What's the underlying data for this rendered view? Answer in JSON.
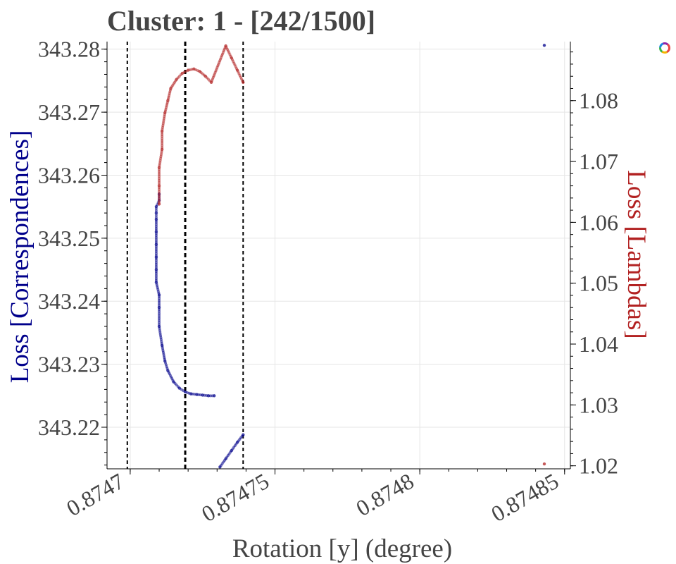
{
  "chart_title": "Cluster: 1 - [242/1500]",
  "toolbar": {
    "logo_icon": "bokeh-logo-icon"
  },
  "colors": {
    "left_series": "#00008b",
    "right_series": "#b22222",
    "left_axis_label": "#00008b",
    "right_axis_label": "#b22222",
    "tick_text": "#444444",
    "grid": "#e5e5e5",
    "marker_line": "#000000"
  },
  "chart_data": {
    "type": "scatter",
    "title": "Cluster: 1 - [242/1500]",
    "xlabel": "Rotation [y] (degree)",
    "ylabel": "Loss [Correspondences]",
    "ylabel_right": "Loss [Lambdas]",
    "xlim": [
      0.874692,
      0.874852
    ],
    "ylim": [
      343.2134,
      343.2812
    ],
    "ylim_right": [
      1.0195,
      1.0897
    ],
    "x_ticks": [
      0.8747,
      0.87475,
      0.8748,
      0.87485
    ],
    "x_tick_labels": [
      "0.8747",
      "0.87475",
      "0.8748",
      "0.87485"
    ],
    "y_ticks": [
      343.22,
      343.23,
      343.24,
      343.25,
      343.26,
      343.27,
      343.28
    ],
    "y_tick_labels": [
      "343.22",
      "343.23",
      "343.24",
      "343.25",
      "343.26",
      "343.27",
      "343.28"
    ],
    "y_right_ticks": [
      1.02,
      1.03,
      1.04,
      1.05,
      1.06,
      1.07,
      1.08
    ],
    "y_right_tick_labels": [
      "1.02",
      "1.03",
      "1.04",
      "1.05",
      "1.06",
      "1.07",
      "1.08"
    ],
    "grid": true,
    "vertical_lines": [
      {
        "x": 0.874699,
        "style": "dashed"
      },
      {
        "x": 0.874719,
        "style": "dashed-bold"
      },
      {
        "x": 0.874739,
        "style": "dashed"
      }
    ],
    "series": [
      {
        "axis": "left",
        "color": "#00008b",
        "x": [
          0.874729,
          0.874727,
          0.874725,
          0.874723,
          0.874721,
          0.874719,
          0.874717,
          0.874715,
          0.874713,
          0.874712,
          0.874711,
          0.87471,
          0.87471,
          0.87471,
          0.874709,
          0.874709,
          0.874709,
          0.874709,
          0.874709,
          0.874709,
          0.874709,
          0.874709,
          0.87471,
          0.87471,
          0.874731,
          0.874733,
          0.874735,
          0.874737,
          0.874739,
          0.874843
        ],
        "y": [
          343.225,
          343.225,
          343.2251,
          343.2252,
          343.2253,
          343.2256,
          343.2262,
          343.2272,
          343.229,
          343.2305,
          343.233,
          343.236,
          343.239,
          343.241,
          343.243,
          343.245,
          343.247,
          343.249,
          343.251,
          343.253,
          343.254,
          343.255,
          343.256,
          343.257,
          343.2137,
          343.215,
          343.2163,
          343.2176,
          343.2188,
          343.2806
        ]
      },
      {
        "axis": "right",
        "color": "#b22222",
        "x": [
          0.87471,
          0.87471,
          0.87471,
          0.874711,
          0.874711,
          0.874712,
          0.874713,
          0.874714,
          0.874716,
          0.874718,
          0.87472,
          0.874722,
          0.874724,
          0.874726,
          0.874728,
          0.874733,
          0.874735,
          0.874737,
          0.874739,
          0.874843
        ],
        "y": [
          1.063,
          1.066,
          1.069,
          1.072,
          1.075,
          1.078,
          1.08,
          1.082,
          1.0835,
          1.0845,
          1.085,
          1.0852,
          1.0848,
          1.084,
          1.083,
          1.089,
          1.087,
          1.085,
          1.083,
          1.0203
        ]
      }
    ]
  }
}
